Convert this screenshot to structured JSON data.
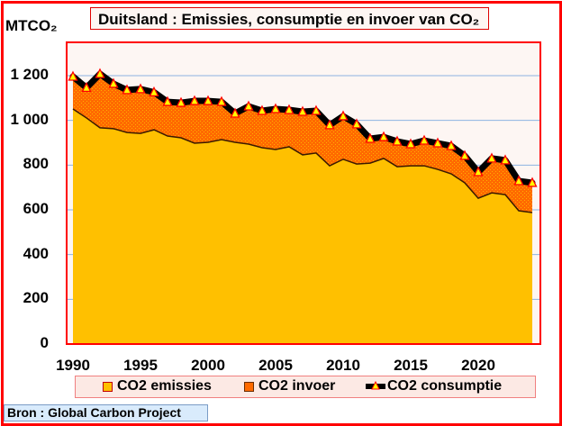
{
  "chart_data": {
    "type": "area",
    "title": "Duitsland : Emissies, consumptie en invoer van CO₂",
    "ylabel": "MTCO₂",
    "xlabel": "",
    "ylim": [
      0,
      1200
    ],
    "xlim": [
      1990,
      2024
    ],
    "grid": true,
    "yticks": [
      "0",
      "200",
      "400",
      "600",
      "800",
      "1 000",
      "1 200"
    ],
    "ytick_values": [
      0,
      200,
      400,
      600,
      800,
      1000,
      1200
    ],
    "xticks": [
      "1990",
      "1995",
      "2000",
      "2005",
      "2010",
      "2015",
      "2020"
    ],
    "xtick_values": [
      1990,
      1995,
      2000,
      2005,
      2010,
      2015,
      2020
    ],
    "x": [
      1990,
      1991,
      1992,
      1993,
      1994,
      1995,
      1996,
      1997,
      1998,
      1999,
      2000,
      2001,
      2002,
      2003,
      2004,
      2005,
      2006,
      2007,
      2008,
      2009,
      2010,
      2011,
      2012,
      2013,
      2014,
      2015,
      2016,
      2017,
      2018,
      2019,
      2020,
      2021,
      2022,
      2023,
      2024
    ],
    "series": [
      {
        "name": "CO2 emissies",
        "kind": "area",
        "color": "#ffc000",
        "values": [
          1051,
          1011,
          967,
          963,
          946,
          942,
          958,
          930,
          922,
          898,
          902,
          914,
          902,
          894,
          878,
          870,
          882,
          846,
          854,
          797,
          826,
          805,
          809,
          830,
          793,
          797,
          797,
          781,
          761,
          721,
          652,
          676,
          668,
          596,
          588
        ]
      },
      {
        "name": "CO2 invoer",
        "kind": "stacked-area-between",
        "color": "#ff6a00",
        "pattern_color": "#ff9a00"
      },
      {
        "name": "CO2 consumptie",
        "kind": "line-with-markers",
        "color": "#000000",
        "marker_color": "#ffff00",
        "marker_edge": "#ff0000",
        "values": [
          1196,
          1146,
          1208,
          1164,
          1136,
          1140,
          1126,
          1083,
          1079,
          1087,
          1087,
          1083,
          1031,
          1063,
          1043,
          1051,
          1047,
          1039,
          1043,
          979,
          1019,
          983,
          918,
          926,
          906,
          894,
          910,
          898,
          886,
          842,
          769,
          830,
          822,
          729,
          721
        ]
      }
    ],
    "legend": {
      "placement": "bottom",
      "entries": [
        "CO2 emissies",
        "CO2 invoer",
        "CO2 consumptie"
      ]
    },
    "source": "Bron : Global Carbon Project"
  },
  "colors": {
    "border": "#ff0000",
    "plot_bg": "#fdf6f3",
    "gridline": "#8db3e2",
    "axis": "#8b0000"
  }
}
